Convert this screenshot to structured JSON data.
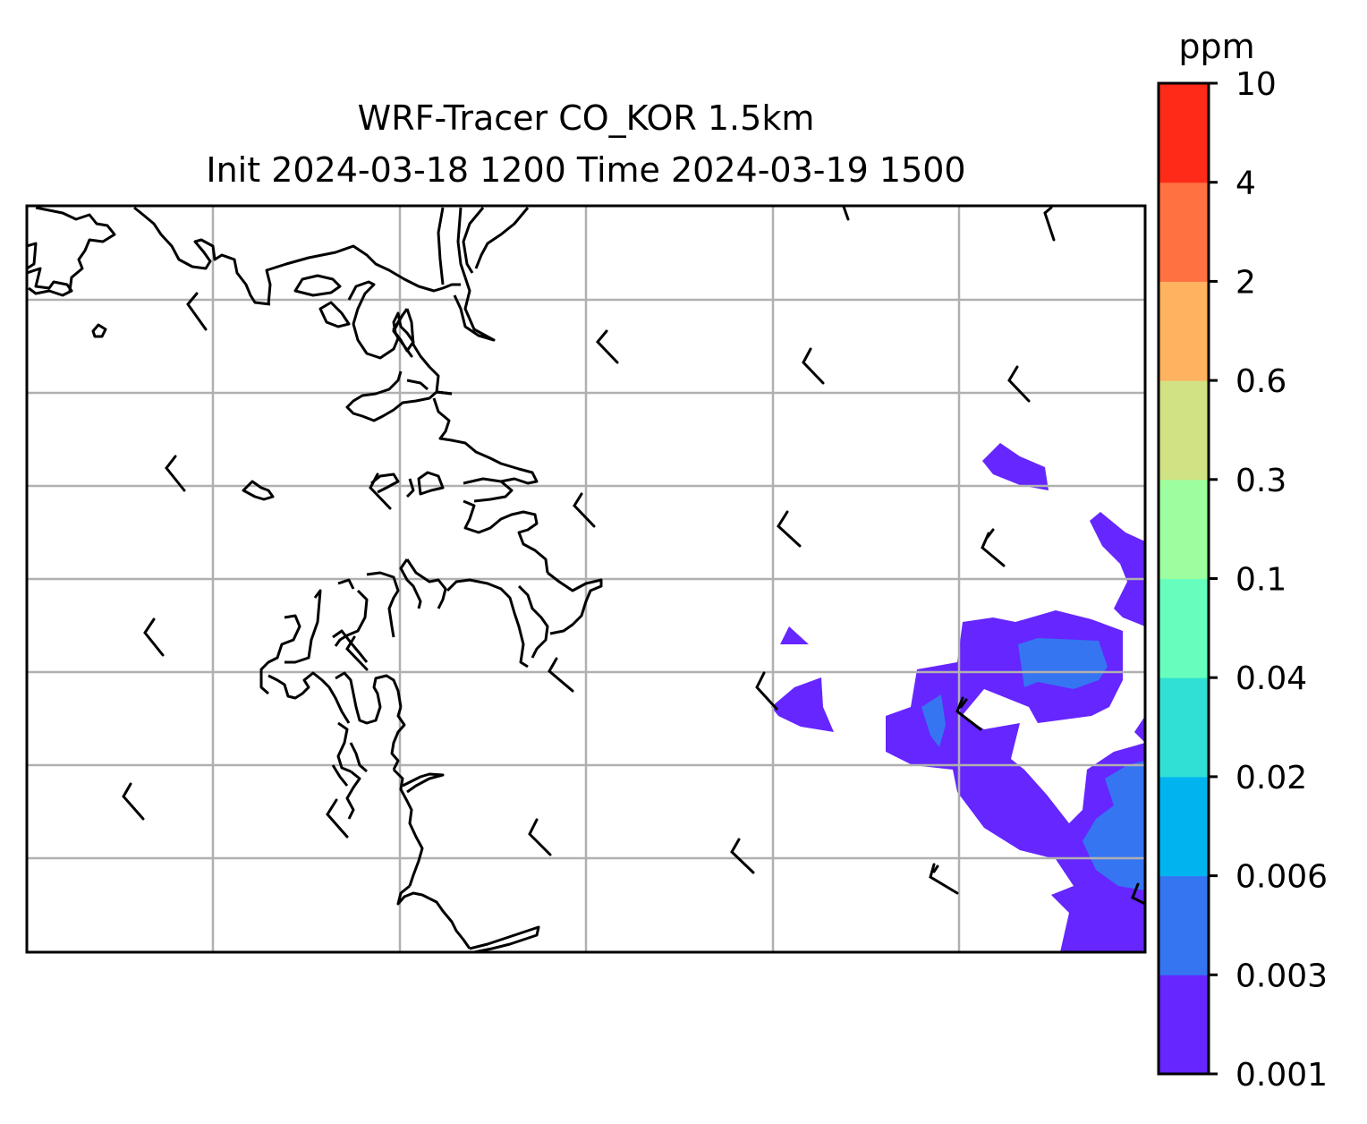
{
  "title": "WRF-Tracer CO_KOR 1.5km",
  "subtitle": "Init 2024-03-18 1200 Time 2024-03-19 1500",
  "colorbar": {
    "unit": "ppm",
    "levels": [
      "0.001",
      "0.003",
      "0.006",
      "0.02",
      "0.04",
      "0.1",
      "0.3",
      "0.6",
      "2",
      "4",
      "10"
    ],
    "colors": [
      "#6526ff",
      "#3575f2",
      "#00b5ef",
      "#30e0d5",
      "#67fdbd",
      "#9cfe9e",
      "#d1e285",
      "#ffb260",
      "#ff7140",
      "#ff2b18"
    ]
  },
  "map": {
    "coastline_color": "#000000",
    "gridline_color": "#b0b0b0",
    "gridlines": true
  }
}
